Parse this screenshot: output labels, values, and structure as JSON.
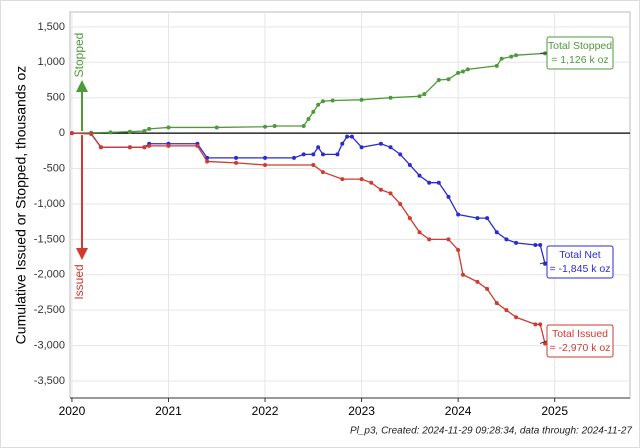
{
  "chart_data": {
    "type": "line",
    "y_label": "Cumulative Issued or Stopped, thousands oz",
    "caption": "Pl_p3, Created: 2024-11-29 09:28:34, data through: 2024-11-27",
    "arrow_labels": [
      {
        "text": "Stopped",
        "color": "#4e9a3a"
      },
      {
        "text": "Issued",
        "color": "#d03a2f"
      }
    ],
    "xlim": [
      2019.98,
      2025.78
    ],
    "xticks": [
      2020,
      2021,
      2022,
      2023,
      2024,
      2025
    ],
    "ylim": [
      -3740,
      1710
    ],
    "yticks": [
      {
        "value": -3500,
        "label": "-3,500"
      },
      {
        "value": -3000,
        "label": "-3,000"
      },
      {
        "value": -2500,
        "label": "-2,500"
      },
      {
        "value": -2000,
        "label": "-2,000"
      },
      {
        "value": -1500,
        "label": "-1,500"
      },
      {
        "value": -1000,
        "label": "-1,000"
      },
      -500,
      0,
      500,
      {
        "value": 1000,
        "label": "1,000"
      },
      {
        "value": 1500,
        "label": "1,500"
      }
    ],
    "grid": true,
    "series": [
      {
        "name": "Total Stopped",
        "note": "= 1,126 k oz",
        "color": "#4e9a3a",
        "x": [
          2020,
          2020.2,
          2020.4,
          2020.6,
          2020.75,
          2020.8,
          2021,
          2021.5,
          2022,
          2022.1,
          2022.4,
          2022.45,
          2022.5,
          2022.55,
          2022.6,
          2022.7,
          2023,
          2023.3,
          2023.6,
          2023.65,
          2023.8,
          2023.9,
          2024,
          2024.05,
          2024.1,
          2024.4,
          2024.45,
          2024.55,
          2024.6,
          2024.9
        ],
        "values": [
          0,
          5,
          10,
          20,
          30,
          60,
          80,
          80,
          90,
          100,
          100,
          200,
          300,
          400,
          450,
          460,
          470,
          500,
          520,
          550,
          750,
          760,
          850,
          870,
          900,
          950,
          1050,
          1080,
          1100,
          1126
        ]
      },
      {
        "name": "Total Net",
        "note": "= -1,845 k oz",
        "color": "#2b2bd6",
        "x": [
          2020,
          2020.2,
          2020.3,
          2020.6,
          2020.75,
          2020.8,
          2021,
          2021.3,
          2021.4,
          2021.7,
          2022,
          2022.3,
          2022.4,
          2022.5,
          2022.55,
          2022.6,
          2022.75,
          2022.8,
          2022.85,
          2022.9,
          2023,
          2023.2,
          2023.3,
          2023.4,
          2023.5,
          2023.6,
          2023.7,
          2023.8,
          2023.9,
          2024,
          2024.2,
          2024.3,
          2024.4,
          2024.5,
          2024.6,
          2024.8,
          2024.85,
          2024.9
        ],
        "values": [
          0,
          -10,
          -200,
          -200,
          -200,
          -150,
          -150,
          -150,
          -350,
          -350,
          -350,
          -350,
          -300,
          -300,
          -200,
          -300,
          -300,
          -150,
          -50,
          -50,
          -200,
          -150,
          -200,
          -300,
          -450,
          -600,
          -700,
          -700,
          -900,
          -1150,
          -1200,
          -1200,
          -1400,
          -1500,
          -1550,
          -1580,
          -1580,
          -1845
        ]
      },
      {
        "name": "Total Issued",
        "note": "= -2,970 k oz",
        "color": "#d03a2f",
        "x": [
          2020,
          2020.2,
          2020.3,
          2020.6,
          2020.75,
          2020.8,
          2021,
          2021.3,
          2021.4,
          2021.7,
          2022,
          2022.5,
          2022.6,
          2022.8,
          2023,
          2023.1,
          2023.2,
          2023.3,
          2023.4,
          2023.5,
          2023.6,
          2023.7,
          2023.9,
          2024,
          2024.05,
          2024.2,
          2024.3,
          2024.4,
          2024.5,
          2024.6,
          2024.8,
          2024.85,
          2024.9
        ],
        "values": [
          0,
          -10,
          -200,
          -200,
          -200,
          -180,
          -180,
          -180,
          -400,
          -420,
          -450,
          -450,
          -550,
          -650,
          -650,
          -700,
          -800,
          -850,
          -1000,
          -1200,
          -1400,
          -1500,
          -1500,
          -1650,
          -2000,
          -2100,
          -2200,
          -2400,
          -2500,
          -2600,
          -2700,
          -2700,
          -2970
        ]
      }
    ]
  }
}
